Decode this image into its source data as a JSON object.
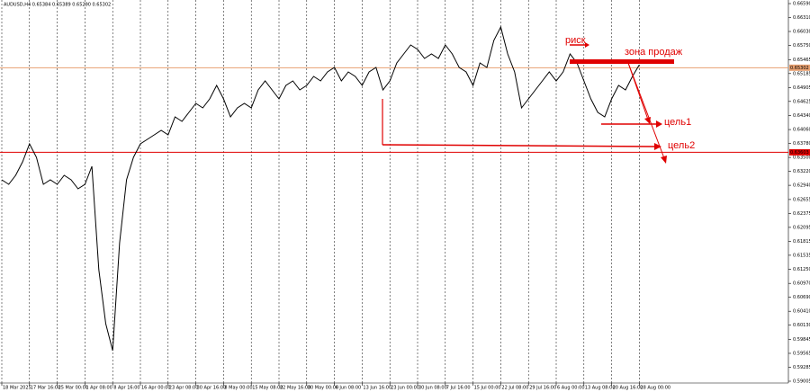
{
  "chart_data": {
    "type": "line",
    "title": "AUDUSD,H4  0.65384 0.65389 0.65290 0.65302",
    "color": "#000000",
    "grid": true,
    "categories": [
      "18 Mar 2025",
      null,
      null,
      null,
      "17 Mar 16:00",
      null,
      null,
      null,
      "25 Mar 00:00",
      null,
      null,
      null,
      "1 Apr 08:00",
      null,
      null,
      null,
      "8 Apr 16:00",
      null,
      null,
      null,
      "16 Apr 00:00",
      null,
      null,
      null,
      "23 Apr 08:00",
      null,
      null,
      null,
      "30 Apr 16:00",
      null,
      null,
      null,
      "8 May 00:00",
      null,
      null,
      null,
      "15 May 08:00",
      null,
      null,
      null,
      "22 May 16:00",
      null,
      null,
      null,
      "30 May 00:00",
      null,
      null,
      null,
      "6 Jun 08:00",
      null,
      null,
      null,
      "13 Jun 16:00",
      null,
      null,
      null,
      "23 Jun 00:00",
      null,
      null,
      null,
      "30 Jun 08:00",
      null,
      null,
      null,
      "7 Jul 16:00",
      null,
      null,
      null,
      "15 Jul 00:00",
      null,
      null,
      null,
      "22 Jul 08:00",
      null,
      null,
      null,
      "29 Jul 16:00",
      null,
      null,
      null,
      "6 Aug 00:00",
      null,
      null,
      null,
      "13 Aug 08:00",
      null,
      null,
      null,
      "20 Aug 16:00",
      null,
      null,
      null,
      "28 Aug 00:00"
    ],
    "values": [
      0.6305,
      0.6296,
      0.63141,
      0.63411,
      0.63773,
      0.63502,
      0.6296,
      0.6305,
      0.6296,
      0.63141,
      0.6305,
      0.6287,
      0.6296,
      0.63321,
      0.61244,
      0.60161,
      0.59619,
      0.61786,
      0.6305,
      0.63502,
      0.63773,
      0.63863,
      0.63953,
      0.64044,
      0.63953,
      0.64314,
      0.64224,
      0.64405,
      0.64585,
      0.64495,
      0.64676,
      0.64947,
      0.64676,
      0.64314,
      0.64495,
      0.64585,
      0.64495,
      0.64856,
      0.65037,
      0.64856,
      0.64676,
      0.64947,
      0.65037,
      0.64856,
      0.64947,
      0.65127,
      0.65037,
      0.65217,
      0.65308,
      0.65037,
      0.65217,
      0.65127,
      0.64947,
      0.65217,
      0.65308,
      0.64856,
      0.65037,
      0.65398,
      0.65579,
      0.65759,
      0.65669,
      0.65488,
      0.65579,
      0.65488,
      0.65759,
      0.65579,
      0.65308,
      0.65217,
      0.64947,
      0.65398,
      0.65308,
      0.6585,
      0.6612,
      0.65579,
      0.65217,
      0.64495,
      0.64676,
      0.64856,
      0.65037,
      0.65217,
      0.65037,
      0.65217,
      0.65579,
      0.65398,
      0.65037,
      0.64676,
      0.64405,
      0.64314,
      0.64676,
      0.64947,
      0.64856,
      0.65127,
      0.65362
    ],
    "ylim": [
      0.59005,
      0.6659
    ],
    "yticks": [
      {
        "value": 0.6659,
        "label": "0.66590"
      },
      {
        "value": 0.6631,
        "label": "0.66310"
      },
      {
        "value": 0.6603,
        "label": "0.66030"
      },
      {
        "value": 0.6575,
        "label": "0.65750"
      },
      {
        "value": 0.65465,
        "label": "0.65465"
      },
      {
        "value": 0.65185,
        "label": "0.65185"
      },
      {
        "value": 0.64905,
        "label": "0.64905"
      },
      {
        "value": 0.64625,
        "label": "0.64625"
      },
      {
        "value": 0.6434,
        "label": "0.64340"
      },
      {
        "value": 0.6406,
        "label": "0.64060"
      },
      {
        "value": 0.6378,
        "label": "0.63780"
      },
      {
        "value": 0.635,
        "label": "0.63500"
      },
      {
        "value": 0.6322,
        "label": "0.63220"
      },
      {
        "value": 0.6294,
        "label": "0.62940"
      },
      {
        "value": 0.62655,
        "label": "0.62655"
      },
      {
        "value": 0.62375,
        "label": "0.62375"
      },
      {
        "value": 0.62095,
        "label": "0.62095"
      },
      {
        "value": 0.61815,
        "label": "0.61815"
      },
      {
        "value": 0.61535,
        "label": "0.61535"
      },
      {
        "value": 0.6125,
        "label": "0.61250"
      },
      {
        "value": 0.6097,
        "label": "0.60970"
      },
      {
        "value": 0.6069,
        "label": "0.60690"
      },
      {
        "value": 0.6041,
        "label": "0.60410"
      },
      {
        "value": 0.6013,
        "label": "0.60130"
      },
      {
        "value": 0.59845,
        "label": "0.59845"
      },
      {
        "value": 0.59565,
        "label": "0.59565"
      },
      {
        "value": 0.59285,
        "label": "0.59285"
      },
      {
        "value": 0.59005,
        "label": "0.59005"
      }
    ],
    "levels": [
      {
        "value": 0.65302,
        "label": "0.65302",
        "color": "#e8a070"
      },
      {
        "value": 0.63603,
        "label": "0.63603",
        "color": "#e00000"
      }
    ],
    "annotations": {
      "risk": "риск",
      "sell_zone": "зона продаж",
      "target1": "цель1",
      "target2": "цель2"
    }
  }
}
